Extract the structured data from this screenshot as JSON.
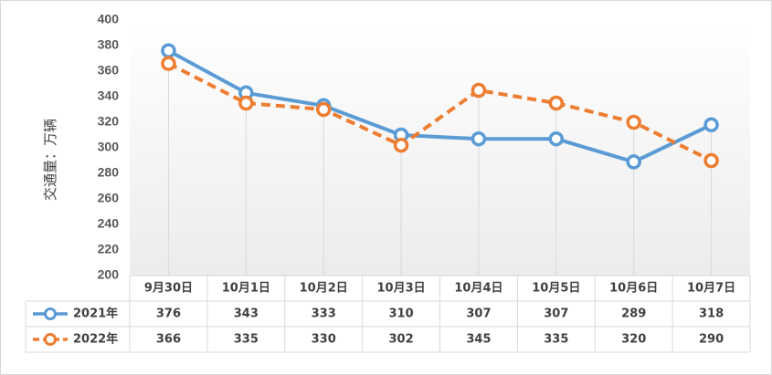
{
  "chart_data": {
    "type": "line",
    "title": "",
    "xlabel": "",
    "ylabel": "交通量：万辆",
    "ylim": [
      200,
      400
    ],
    "yticks": [
      "200",
      "220",
      "240",
      "260",
      "280",
      "300",
      "320",
      "340",
      "360",
      "380",
      "400"
    ],
    "categories": [
      "9月30日",
      "10月1日",
      "10月2日",
      "10月3日",
      "10月4日",
      "10月5日",
      "10月6日",
      "10月7日"
    ],
    "series": [
      {
        "name": "2021年",
        "values": [
          376,
          343,
          333,
          310,
          307,
          307,
          289,
          318
        ],
        "color": "#5b9bd5",
        "style": "solid"
      },
      {
        "name": "2022年",
        "values": [
          366,
          335,
          330,
          302,
          345,
          335,
          320,
          290
        ],
        "color": "#ed7d31",
        "style": "dashed"
      }
    ],
    "grid": "vertical drop lines",
    "legend": "data table"
  }
}
